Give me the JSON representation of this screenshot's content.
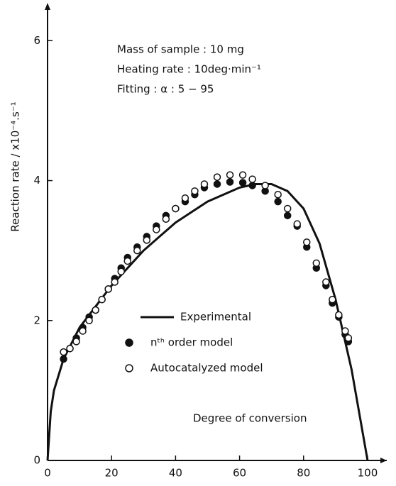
{
  "chart_data": {
    "type": "line",
    "annotations": [
      "Mass of sample : 10 mg",
      "Heating rate : 10deg·min⁻¹",
      "Fitting : α : 5 − 95"
    ],
    "ylabel": "Reaction rate / x10⁻⁴.s⁻¹",
    "xlabel": "Degree of conversion",
    "xlim": [
      0,
      106
    ],
    "ylim": [
      0,
      6.5
    ],
    "xticks": [
      0,
      20,
      40,
      60,
      80,
      100
    ],
    "yticks": [
      0,
      2,
      4,
      6
    ],
    "series": [
      {
        "name": "Experimental",
        "color": "#111111",
        "marker": "none",
        "x": [
          0,
          1,
          2,
          5,
          10,
          15,
          20,
          25,
          30,
          35,
          40,
          45,
          50,
          55,
          60,
          65,
          70,
          75,
          80,
          85,
          90,
          95,
          100
        ],
        "values": [
          0,
          0.7,
          1.0,
          1.45,
          1.9,
          2.2,
          2.5,
          2.75,
          3.0,
          3.2,
          3.4,
          3.55,
          3.7,
          3.8,
          3.9,
          3.95,
          3.95,
          3.85,
          3.6,
          3.1,
          2.3,
          1.3,
          0
        ]
      },
      {
        "name": "nᵗʰ order model",
        "color": "#111111",
        "marker": "filled",
        "x": [
          5,
          7,
          9,
          11,
          13,
          15,
          17,
          19,
          21,
          23,
          25,
          28,
          31,
          34,
          37,
          40,
          43,
          46,
          49,
          53,
          57,
          61,
          64,
          68,
          72,
          75,
          78,
          81,
          84,
          87,
          89,
          91,
          93,
          94
        ],
        "values": [
          1.45,
          1.6,
          1.75,
          1.9,
          2.05,
          2.15,
          2.3,
          2.45,
          2.6,
          2.75,
          2.9,
          3.05,
          3.2,
          3.35,
          3.5,
          3.6,
          3.7,
          3.8,
          3.9,
          3.95,
          3.98,
          3.97,
          3.93,
          3.85,
          3.7,
          3.5,
          3.35,
          3.05,
          2.75,
          2.5,
          2.25,
          2.05,
          1.8,
          1.7
        ]
      },
      {
        "name": "Autocatalyzed model",
        "color": "#111111",
        "marker": "hollow",
        "x": [
          5,
          7,
          9,
          11,
          13,
          15,
          17,
          19,
          21,
          23,
          25,
          28,
          31,
          34,
          37,
          40,
          43,
          46,
          49,
          53,
          57,
          61,
          64,
          68,
          72,
          75,
          78,
          81,
          84,
          87,
          89,
          91,
          93,
          94
        ],
        "values": [
          1.55,
          1.6,
          1.7,
          1.85,
          2.0,
          2.15,
          2.3,
          2.45,
          2.55,
          2.7,
          2.85,
          3.0,
          3.15,
          3.3,
          3.45,
          3.6,
          3.75,
          3.85,
          3.95,
          4.05,
          4.08,
          4.08,
          4.02,
          3.93,
          3.8,
          3.6,
          3.38,
          3.12,
          2.82,
          2.55,
          2.3,
          2.08,
          1.85,
          1.75
        ]
      }
    ]
  }
}
